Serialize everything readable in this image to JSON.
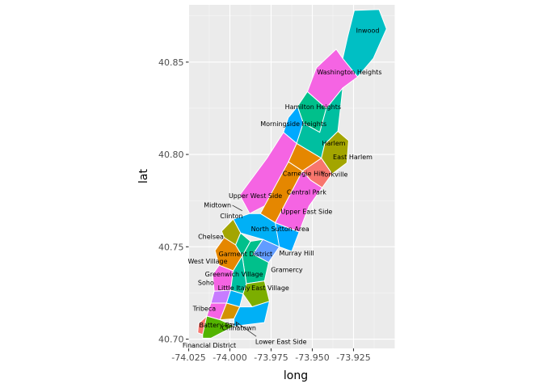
{
  "chart_data": {
    "type": "map",
    "xlabel": "long",
    "ylabel": "lat",
    "xlim": [
      -74.025,
      -73.9
    ],
    "ylim": [
      40.695,
      40.881
    ],
    "x_ticks": [
      -74.025,
      -74.0,
      -73.975,
      -73.95,
      -73.925
    ],
    "x_tick_labels": [
      "-74.025",
      "-74.000",
      "-73.975",
      "-73.950",
      "-73.925"
    ],
    "y_ticks": [
      40.7,
      40.75,
      40.8,
      40.85
    ],
    "y_tick_labels": [
      "40.70",
      "40.75",
      "40.80",
      "40.85"
    ],
    "grid": true,
    "background": "#ebebeb",
    "border_color": "#ffffff",
    "neighborhoods": [
      {
        "name": "Inwood",
        "color": "#00bfc4",
        "poly": [
          [
            -73.9275,
            40.842
          ],
          [
            -73.9225,
            40.842
          ],
          [
            -73.913,
            40.852
          ],
          [
            -73.905,
            40.868
          ],
          [
            -73.9095,
            40.8785
          ],
          [
            -73.9245,
            40.878
          ],
          [
            -73.9285,
            40.864
          ],
          [
            -73.9315,
            40.852
          ]
        ],
        "label": [
          -73.923,
          40.867
        ]
      },
      {
        "name": "Washington Heights",
        "color": "#f564e3",
        "poly": [
          [
            -73.9315,
            40.852
          ],
          [
            -73.9225,
            40.842
          ],
          [
            -73.9315,
            40.836
          ],
          [
            -73.9415,
            40.825
          ],
          [
            -73.953,
            40.834
          ],
          [
            -73.9475,
            40.847
          ],
          [
            -73.9355,
            40.857
          ]
        ],
        "label": [
          -73.935,
          40.842
        ]
      },
      {
        "name": "Hamilton Heights",
        "color": "#00c08b",
        "poly": [
          [
            -73.953,
            40.834
          ],
          [
            -73.9415,
            40.825
          ],
          [
            -73.9455,
            40.812
          ],
          [
            -73.9555,
            40.817
          ],
          [
            -73.959,
            40.826
          ]
        ],
        "label": [
          -73.953,
          40.826
        ]
      },
      {
        "name": "Morningside Heights",
        "color": "#00a9ff",
        "poly": [
          [
            -73.959,
            40.826
          ],
          [
            -73.9555,
            40.817
          ],
          [
            -73.9595,
            40.806
          ],
          [
            -73.9675,
            40.812
          ],
          [
            -73.9645,
            40.82
          ]
        ],
        "label": [
          -73.965,
          40.817
        ]
      },
      {
        "name": "Harlem",
        "color": "#00bfa0",
        "poly": [
          [
            -73.9555,
            40.817
          ],
          [
            -73.9455,
            40.812
          ],
          [
            -73.9415,
            40.825
          ],
          [
            -73.9315,
            40.836
          ],
          [
            -73.9345,
            40.8125
          ],
          [
            -73.9425,
            40.8055
          ],
          [
            -73.9445,
            40.798
          ],
          [
            -73.9595,
            40.806
          ]
        ],
        "label": [
          -73.944,
          40.805
        ]
      },
      {
        "name": "East Harlem",
        "color": "#a3a500",
        "poly": [
          [
            -73.9445,
            40.798
          ],
          [
            -73.9425,
            40.8055
          ],
          [
            -73.9345,
            40.8125
          ],
          [
            -73.928,
            40.8075
          ],
          [
            -73.929,
            40.7955
          ],
          [
            -73.938,
            40.7895
          ]
        ],
        "label": [
          -73.933,
          40.8
        ]
      },
      {
        "name": "Carnegie Hill",
        "color": "#e58700",
        "poly": [
          [
            -73.9595,
            40.806
          ],
          [
            -73.9445,
            40.798
          ],
          [
            -73.956,
            40.791
          ],
          [
            -73.9645,
            40.796
          ]
        ],
        "label": [
          -73.955,
          40.795
        ]
      },
      {
        "name": "Yorkville",
        "color": "#f8766d",
        "poly": [
          [
            -73.9445,
            40.798
          ],
          [
            -73.938,
            40.7895
          ],
          [
            -73.944,
            40.782
          ],
          [
            -73.951,
            40.786
          ],
          [
            -73.956,
            40.791
          ]
        ],
        "label": [
          -73.944,
          40.787
        ]
      },
      {
        "name": "Upper West Side",
        "color": "#f564e3",
        "poly": [
          [
            -73.9675,
            40.812
          ],
          [
            -73.9595,
            40.806
          ],
          [
            -73.9645,
            40.796
          ],
          [
            -73.975,
            40.774
          ],
          [
            -73.988,
            40.768
          ],
          [
            -73.994,
            40.778
          ],
          [
            -73.9775,
            40.798
          ]
        ],
        "label": [
          -73.985,
          40.779
        ]
      },
      {
        "name": "Central Park",
        "color": "#e58700",
        "poly": [
          [
            -73.9645,
            40.796
          ],
          [
            -73.956,
            40.791
          ],
          [
            -73.9725,
            40.763
          ],
          [
            -73.9815,
            40.768
          ]
        ],
        "label": [
          -73.965,
          40.778
        ]
      },
      {
        "name": "Upper East Side",
        "color": "#f564e3",
        "poly": [
          [
            -73.956,
            40.791
          ],
          [
            -73.951,
            40.786
          ],
          [
            -73.944,
            40.782
          ],
          [
            -73.952,
            40.772
          ],
          [
            -73.958,
            40.758
          ],
          [
            -73.9725,
            40.763
          ]
        ],
        "label": [
          -73.96,
          40.77
        ]
      },
      {
        "name": "Midtown",
        "color": "#00b0f6",
        "poly": [
          [
            -73.988,
            40.768
          ],
          [
            -73.9815,
            40.768
          ],
          [
            -73.9725,
            40.763
          ],
          [
            -73.962,
            40.758
          ],
          [
            -73.97,
            40.75
          ],
          [
            -73.98,
            40.754
          ],
          [
            -73.9935,
            40.7575
          ],
          [
            -73.998,
            40.765
          ]
        ],
        "label": [
          -73.993,
          40.765
        ]
      },
      {
        "name": "Clinton",
        "color": "#a3a500",
        "poly": [
          [
            -73.998,
            40.765
          ],
          [
            -73.9935,
            40.7575
          ],
          [
            -73.9965,
            40.751
          ],
          [
            -74.0035,
            40.755
          ],
          [
            -74.005,
            40.7585
          ]
        ],
        "label": [
          -73.998,
          40.757
        ]
      },
      {
        "name": "North Sutton Area",
        "color": "#00a9ff",
        "poly": [
          [
            -73.9725,
            40.763
          ],
          [
            -73.958,
            40.758
          ],
          [
            -73.9625,
            40.7475
          ],
          [
            -73.97,
            40.75
          ]
        ],
        "label": [
          -73.965,
          40.753
        ]
      },
      {
        "name": "Chelsea",
        "color": "#e58700",
        "poly": [
          [
            -74.0035,
            40.755
          ],
          [
            -73.9965,
            40.751
          ],
          [
            -73.9925,
            40.745
          ],
          [
            -73.998,
            40.737
          ],
          [
            -74.0065,
            40.74
          ],
          [
            -74.009,
            40.748
          ]
        ],
        "label": [
          -74.003,
          40.744
        ]
      },
      {
        "name": "Garment District",
        "color": "#00c08b",
        "poly": [
          [
            -73.9965,
            40.751
          ],
          [
            -73.9935,
            40.7575
          ],
          [
            -73.9875,
            40.753
          ],
          [
            -73.9925,
            40.745
          ]
        ],
        "label": [
          -73.992,
          40.751
        ]
      },
      {
        "name": "Murray Hill",
        "color": "#619cff",
        "poly": [
          [
            -73.98,
            40.754
          ],
          [
            -73.97,
            40.75
          ],
          [
            -73.9765,
            40.7415
          ],
          [
            -73.986,
            40.746
          ]
        ],
        "label": [
          -73.978,
          40.747
        ]
      },
      {
        "name": "Gramercy",
        "color": "#00c08b",
        "poly": [
          [
            -73.9925,
            40.745
          ],
          [
            -73.9875,
            40.753
          ],
          [
            -73.98,
            40.754
          ],
          [
            -73.986,
            40.746
          ],
          [
            -73.9765,
            40.7415
          ],
          [
            -73.979,
            40.7315
          ],
          [
            -73.99,
            40.73
          ]
        ],
        "label": [
          -73.984,
          40.739
        ]
      },
      {
        "name": "West Village",
        "color": "#f564e3",
        "poly": [
          [
            -74.0065,
            40.74
          ],
          [
            -73.998,
            40.737
          ],
          [
            -73.9995,
            40.7265
          ],
          [
            -74.0095,
            40.726
          ],
          [
            -74.0105,
            40.735
          ]
        ],
        "label": [
          -74.006,
          40.732
        ]
      },
      {
        "name": "Greenwich Village",
        "color": "#00bfa0",
        "poly": [
          [
            -73.998,
            40.737
          ],
          [
            -73.9925,
            40.745
          ],
          [
            -73.99,
            40.73
          ],
          [
            -73.992,
            40.7245
          ],
          [
            -73.9995,
            40.7265
          ]
        ],
        "label": [
          -73.995,
          40.733
        ]
      },
      {
        "name": "East Village",
        "color": "#7cae00",
        "poly": [
          [
            -73.99,
            40.73
          ],
          [
            -73.979,
            40.7315
          ],
          [
            -73.976,
            40.7205
          ],
          [
            -73.9865,
            40.7175
          ],
          [
            -73.992,
            40.7245
          ]
        ],
        "label": [
          -73.984,
          40.725
        ]
      },
      {
        "name": "Soho",
        "color": "#c77cff",
        "poly": [
          [
            -74.0095,
            40.726
          ],
          [
            -73.9995,
            40.7265
          ],
          [
            -74.002,
            40.7195
          ],
          [
            -74.0115,
            40.7195
          ]
        ],
        "label": [
          -74.005,
          40.723
        ]
      },
      {
        "name": "Little Italy",
        "color": "#00b0f6",
        "poly": [
          [
            -73.9995,
            40.7265
          ],
          [
            -73.992,
            40.7245
          ],
          [
            -73.994,
            40.7175
          ],
          [
            -74.002,
            40.7195
          ]
        ],
        "label": [
          -73.997,
          40.722
        ]
      },
      {
        "name": "Tribeca",
        "color": "#f564e3",
        "poly": [
          [
            -74.0115,
            40.7195
          ],
          [
            -74.002,
            40.7195
          ],
          [
            -74.006,
            40.7105
          ],
          [
            -74.014,
            40.7125
          ]
        ],
        "label": [
          -74.008,
          40.716
        ]
      },
      {
        "name": "Chinatown",
        "color": "#d39200",
        "poly": [
          [
            -74.002,
            40.7195
          ],
          [
            -73.994,
            40.7175
          ],
          [
            -73.9975,
            40.711
          ],
          [
            -74.006,
            40.7105
          ]
        ],
        "label": [
          -74.0,
          40.715
        ]
      },
      {
        "name": "Lower East Side",
        "color": "#00b0f6",
        "poly": [
          [
            -73.994,
            40.7175
          ],
          [
            -73.9865,
            40.7175
          ],
          [
            -73.976,
            40.7205
          ],
          [
            -73.979,
            40.709
          ],
          [
            -73.9975,
            40.707
          ],
          [
            -73.9975,
            40.711
          ]
        ],
        "label": [
          -73.988,
          40.713
        ]
      },
      {
        "name": "Battery Park",
        "color": "#f8766d",
        "poly": [
          [
            -74.019,
            40.7085
          ],
          [
            -74.014,
            40.7125
          ],
          [
            -74.0165,
            40.7025
          ],
          [
            -74.0195,
            40.7035
          ]
        ],
        "label": [
          -74.017,
          40.706
        ]
      },
      {
        "name": "Financial District",
        "color": "#53b400",
        "poly": [
          [
            -74.014,
            40.7125
          ],
          [
            -74.006,
            40.7105
          ],
          [
            -73.9975,
            40.707
          ],
          [
            -74.0115,
            40.7005
          ],
          [
            -74.0165,
            40.7005
          ],
          [
            -74.0165,
            40.7025
          ]
        ],
        "label": [
          -74.009,
          40.705
        ]
      }
    ],
    "labels": [
      {
        "text": "Inwood",
        "pos": [
          -73.9235,
          40.867
        ],
        "anchor": "start"
      },
      {
        "text": "Washington Heights",
        "pos": [
          -73.9275,
          40.8445
        ],
        "anchor": "middle"
      },
      {
        "text": "Hamilton Heights",
        "pos": [
          -73.9496,
          40.8257
        ],
        "anchor": "middle"
      },
      {
        "text": "Morningside Heights",
        "pos": [
          -73.9614,
          40.8164
        ],
        "anchor": "middle"
      },
      {
        "text": "Harlem",
        "pos": [
          -73.937,
          40.806
        ],
        "anchor": "middle"
      },
      {
        "text": "East Harlem",
        "pos": [
          -73.9255,
          40.7985
        ],
        "anchor": "middle"
      },
      {
        "text": "Carnegie Hill",
        "pos": [
          -73.9555,
          40.7895
        ],
        "anchor": "middle"
      },
      {
        "text": "Yorkville",
        "pos": [
          -73.9365,
          40.789
        ],
        "anchor": "middle"
      },
      {
        "text": "Central Park",
        "pos": [
          -73.9535,
          40.7795
        ],
        "anchor": "middle"
      },
      {
        "text": "Upper West Side",
        "pos": [
          -73.9845,
          40.7775
        ],
        "anchor": "middle"
      },
      {
        "text": "Midtown",
        "pos": [
          -74.0075,
          40.7725
        ],
        "anchor": "middle"
      },
      {
        "text": "Upper East Side",
        "pos": [
          -73.9535,
          40.769
        ],
        "anchor": "middle"
      },
      {
        "text": "Clinton",
        "pos": [
          -73.999,
          40.7665
        ],
        "anchor": "middle"
      },
      {
        "text": "North Sutton Area",
        "pos": [
          -73.9695,
          40.7595
        ],
        "anchor": "middle"
      },
      {
        "text": "Chelsea",
        "pos": [
          -74.0115,
          40.7555
        ],
        "anchor": "middle"
      },
      {
        "text": "Garment District",
        "pos": [
          -73.9905,
          40.746
        ],
        "anchor": "middle"
      },
      {
        "text": "Murray Hill",
        "pos": [
          -73.9595,
          40.7465
        ],
        "anchor": "middle"
      },
      {
        "text": "West Village",
        "pos": [
          -74.0135,
          40.742
        ],
        "anchor": "middle"
      },
      {
        "text": "Gramercy",
        "pos": [
          -73.9655,
          40.7375
        ],
        "anchor": "middle"
      },
      {
        "text": "Greenwich Village",
        "pos": [
          -73.9975,
          40.735
        ],
        "anchor": "middle"
      },
      {
        "text": "Soho",
        "pos": [
          -74.0145,
          40.7305
        ],
        "anchor": "middle"
      },
      {
        "text": "Little Italy",
        "pos": [
          -73.9975,
          40.7275
        ],
        "anchor": "middle"
      },
      {
        "text": "East Village",
        "pos": [
          -73.9755,
          40.7275
        ],
        "anchor": "middle"
      },
      {
        "text": "Tribeca",
        "pos": [
          -74.0155,
          40.7165
        ],
        "anchor": "middle"
      },
      {
        "text": "Battery Park",
        "pos": [
          -74.0065,
          40.7075
        ],
        "anchor": "middle"
      },
      {
        "text": "Chinatown",
        "pos": [
          -73.9945,
          40.706
        ],
        "anchor": "middle"
      },
      {
        "text": "Financial District",
        "pos": [
          -74.0125,
          40.6965
        ],
        "anchor": "middle"
      },
      {
        "text": "Lower East Side",
        "pos": [
          -73.969,
          40.6985
        ],
        "anchor": "middle"
      }
    ],
    "leader_lines": [
      {
        "from": [
          -73.9985,
          40.7725
        ],
        "to": [
          -73.9925,
          40.7695
        ]
      },
      {
        "from": [
          -73.984,
          40.7015
        ],
        "to": [
          -73.9965,
          40.7095
        ]
      },
      {
        "from": [
          -74.0005,
          40.7085
        ],
        "to": [
          -73.997,
          40.708
        ]
      }
    ]
  }
}
